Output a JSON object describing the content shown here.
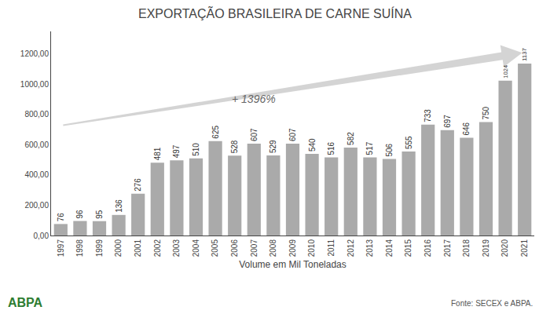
{
  "chart_data": {
    "type": "bar",
    "title": "EXPORTAÇÃO BRASILEIRA DE CARNE SUÍNA",
    "xlabel": "Volume em Mil Toneladas",
    "categories": [
      "1997",
      "1998",
      "1999",
      "2000",
      "2001",
      "2002",
      "2003",
      "2004",
      "2005",
      "2006",
      "2007",
      "2008",
      "2009",
      "2010",
      "2011",
      "2012",
      "2013",
      "2014",
      "2015",
      "2016",
      "2017",
      "2018",
      "2019",
      "2020",
      "2021"
    ],
    "values": [
      76,
      96,
      95,
      136,
      276,
      481,
      497,
      510,
      625,
      528,
      607,
      529,
      607,
      540,
      516,
      582,
      517,
      506,
      555,
      733,
      697,
      646,
      750,
      1024,
      1137
    ],
    "color": "#aaaaaa",
    "ylim": [
      0,
      1350
    ],
    "yticks": [
      {
        "value": 0,
        "label": "0,00"
      },
      {
        "value": 200,
        "label": "200,00"
      },
      {
        "value": 400,
        "label": "400,00"
      },
      {
        "value": 600,
        "label": "600,00"
      },
      {
        "value": 800,
        "label": "800,00"
      },
      {
        "value": 1000,
        "label": "1000,00"
      },
      {
        "value": 1200,
        "label": "1200,00"
      }
    ],
    "data_labels": true,
    "grid": false,
    "annotations": [
      {
        "text": "+ 1396%"
      },
      {
        "text": "Fonte: SECEX e ABPA."
      },
      {
        "text": "ABPA"
      }
    ]
  }
}
